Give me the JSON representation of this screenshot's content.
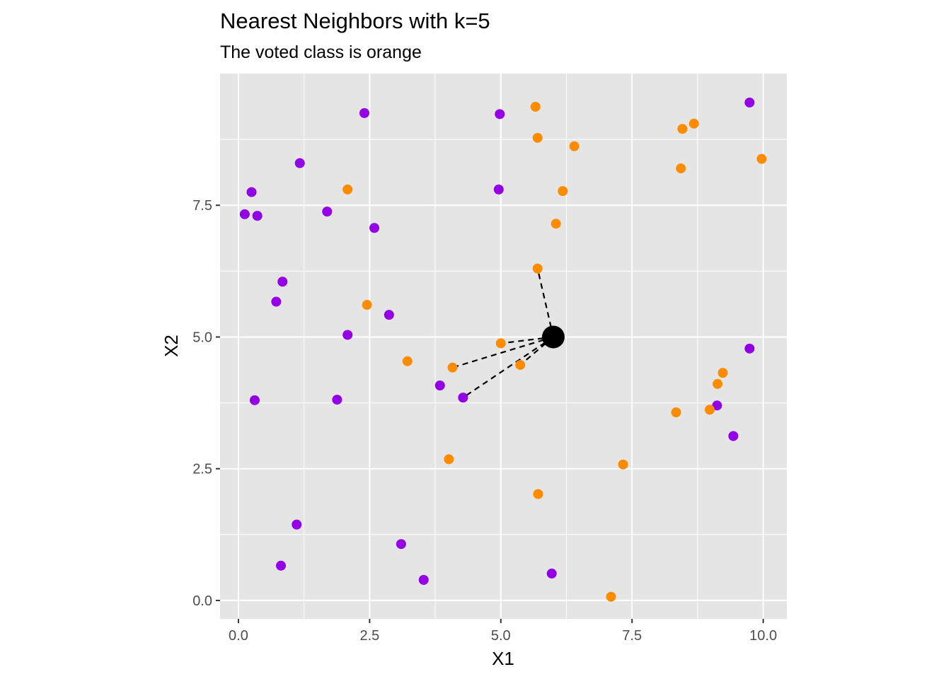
{
  "chart_data": {
    "type": "scatter",
    "title": "Nearest Neighbors with k=5",
    "subtitle": "The voted class is orange",
    "xlabel": "X1",
    "ylabel": "X2",
    "xlim": [
      -0.35,
      10.45
    ],
    "ylim": [
      -0.35,
      10.0
    ],
    "x_ticks": [
      0,
      2.5,
      5,
      7.5,
      10
    ],
    "x_tick_labels": [
      "0.0",
      "2.5",
      "5.0",
      "7.5",
      "10.0"
    ],
    "y_ticks": [
      0,
      2.5,
      5,
      7.5
    ],
    "y_tick_labels": [
      "0.0",
      "2.5",
      "5.0",
      "7.5"
    ],
    "grid": true,
    "legend": "none",
    "colors": {
      "orange": "#ff8c00",
      "purple": "#9400e6",
      "query": "#000000",
      "panel": "#e5e5e5",
      "grid": "#ffffff"
    },
    "query_point": {
      "x": 6.0,
      "y": 5.0
    },
    "neighbors": [
      {
        "x": 5.7,
        "y": 6.3
      },
      {
        "x": 5.0,
        "y": 4.88
      },
      {
        "x": 5.37,
        "y": 4.47
      },
      {
        "x": 4.08,
        "y": 4.42
      },
      {
        "x": 4.28,
        "y": 3.85
      }
    ],
    "series": [
      {
        "class": "purple",
        "points": [
          {
            "x": 0.25,
            "y": 7.75
          },
          {
            "x": 0.12,
            "y": 7.33
          },
          {
            "x": 0.36,
            "y": 7.3
          },
          {
            "x": 1.17,
            "y": 8.3
          },
          {
            "x": 1.69,
            "y": 7.38
          },
          {
            "x": 2.4,
            "y": 9.25
          },
          {
            "x": 2.59,
            "y": 7.07
          },
          {
            "x": 0.84,
            "y": 6.05
          },
          {
            "x": 0.72,
            "y": 5.67
          },
          {
            "x": 2.87,
            "y": 5.42
          },
          {
            "x": 2.08,
            "y": 5.04
          },
          {
            "x": 0.31,
            "y": 3.8
          },
          {
            "x": 1.88,
            "y": 3.81
          },
          {
            "x": 3.84,
            "y": 4.08
          },
          {
            "x": 4.28,
            "y": 3.85
          },
          {
            "x": 4.98,
            "y": 9.23
          },
          {
            "x": 4.96,
            "y": 7.8
          },
          {
            "x": 1.11,
            "y": 1.44
          },
          {
            "x": 0.81,
            "y": 0.66
          },
          {
            "x": 3.1,
            "y": 1.07
          },
          {
            "x": 3.53,
            "y": 0.39
          },
          {
            "x": 5.97,
            "y": 0.51
          },
          {
            "x": 9.74,
            "y": 9.45
          },
          {
            "x": 9.74,
            "y": 4.78
          },
          {
            "x": 9.12,
            "y": 3.7
          },
          {
            "x": 9.43,
            "y": 3.12
          }
        ]
      },
      {
        "class": "orange",
        "points": [
          {
            "x": 5.66,
            "y": 9.37
          },
          {
            "x": 5.7,
            "y": 8.78
          },
          {
            "x": 6.4,
            "y": 8.62
          },
          {
            "x": 6.18,
            "y": 7.77
          },
          {
            "x": 6.05,
            "y": 7.15
          },
          {
            "x": 2.08,
            "y": 7.8
          },
          {
            "x": 5.7,
            "y": 6.3
          },
          {
            "x": 2.45,
            "y": 5.61
          },
          {
            "x": 5.0,
            "y": 4.88
          },
          {
            "x": 5.37,
            "y": 4.47
          },
          {
            "x": 4.08,
            "y": 4.42
          },
          {
            "x": 3.22,
            "y": 4.54
          },
          {
            "x": 4.01,
            "y": 2.68
          },
          {
            "x": 5.71,
            "y": 2.02
          },
          {
            "x": 7.33,
            "y": 2.58
          },
          {
            "x": 7.1,
            "y": 0.07
          },
          {
            "x": 8.46,
            "y": 8.95
          },
          {
            "x": 8.68,
            "y": 9.05
          },
          {
            "x": 8.43,
            "y": 8.2
          },
          {
            "x": 9.97,
            "y": 8.38
          },
          {
            "x": 9.23,
            "y": 4.32
          },
          {
            "x": 9.13,
            "y": 4.11
          },
          {
            "x": 8.34,
            "y": 3.57
          },
          {
            "x": 8.98,
            "y": 3.62
          }
        ]
      }
    ]
  }
}
